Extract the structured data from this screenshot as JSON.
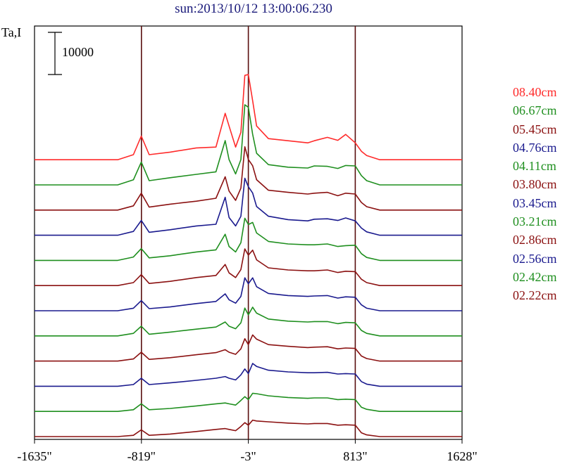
{
  "header": {
    "title": "sun:2013/10/12 13:00:06.230",
    "ylabel": "Ta,I"
  },
  "colors": {
    "red": "#ff2a2a",
    "green": "#1f8f1f",
    "maroon": "#8b1111",
    "navy": "#1a1a8e",
    "axis": "#000000",
    "marker": "#5a0f0f"
  },
  "chart_data": {
    "type": "line",
    "title": "sun:2013/10/12 13:00:06.230",
    "ylabel": "Ta,I",
    "xlabel": "",
    "x_ticks": [
      -1635,
      -819,
      -3,
      813,
      1628
    ],
    "x_tick_labels": [
      "-1635\"",
      "-819\"",
      "-3\"",
      "813\"",
      "1628\""
    ],
    "xlim": [
      -1635,
      1628
    ],
    "vertical_markers": [
      -819,
      -3,
      813
    ],
    "scale_bar": {
      "value": 10000,
      "label": "10000"
    },
    "series": [
      {
        "name": "08.40cm",
        "color": "#ff2a2a",
        "x": [
          -1635,
          -1300,
          -1000,
          -880,
          -820,
          -760,
          -600,
          -400,
          -250,
          -180,
          -150,
          -100,
          -60,
          -30,
          -3,
          30,
          60,
          150,
          300,
          450,
          500,
          600,
          680,
          740,
          813,
          860,
          900,
          1000,
          1300,
          1628
        ],
        "y": [
          0,
          0,
          0,
          1200,
          5600,
          1200,
          1800,
          2800,
          3000,
          11000,
          8000,
          3000,
          6500,
          20000,
          20200,
          14000,
          8000,
          5000,
          4500,
          4000,
          4500,
          5300,
          4600,
          6000,
          4000,
          2000,
          1000,
          0,
          0,
          0
        ]
      },
      {
        "name": "06.67cm",
        "color": "#1f8f1f",
        "x": [
          -1635,
          -1300,
          -1000,
          -880,
          -820,
          -760,
          -600,
          -400,
          -250,
          -180,
          -150,
          -100,
          -60,
          -30,
          -3,
          30,
          60,
          150,
          300,
          450,
          500,
          600,
          680,
          740,
          813,
          860,
          900,
          1000,
          1300,
          1628
        ],
        "y": [
          0,
          0,
          0,
          1200,
          5400,
          1000,
          1700,
          2500,
          3100,
          10500,
          6000,
          2600,
          6000,
          19000,
          18400,
          12000,
          7500,
          4800,
          4200,
          4000,
          4500,
          4400,
          3900,
          4600,
          4500,
          2200,
          1000,
          0,
          0,
          0
        ]
      },
      {
        "name": "05.45cm",
        "color": "#8b1111",
        "x": [
          -1635,
          -1300,
          -1000,
          -880,
          -820,
          -760,
          -600,
          -400,
          -250,
          -180,
          -150,
          -100,
          -60,
          -30,
          -3,
          30,
          60,
          150,
          300,
          450,
          500,
          600,
          680,
          740,
          813,
          860,
          900,
          1000,
          1300,
          1628
        ],
        "y": [
          0,
          0,
          0,
          1000,
          4000,
          700,
          1400,
          2100,
          2800,
          7900,
          4500,
          2300,
          5200,
          15000,
          12000,
          10500,
          7200,
          4700,
          4200,
          3800,
          4000,
          4200,
          3400,
          4000,
          3800,
          1800,
          800,
          0,
          0,
          0
        ]
      },
      {
        "name": "04.76cm",
        "color": "#1a1a8e",
        "x": [
          -1635,
          -1300,
          -1000,
          -880,
          -820,
          -760,
          -600,
          -400,
          -250,
          -180,
          -150,
          -100,
          -60,
          -30,
          -3,
          30,
          60,
          150,
          300,
          450,
          500,
          600,
          680,
          740,
          813,
          860,
          900,
          1000,
          1300,
          1628
        ],
        "y": [
          0,
          0,
          0,
          900,
          3500,
          700,
          1300,
          2200,
          2600,
          9000,
          4200,
          2200,
          4500,
          13500,
          11500,
          10000,
          6800,
          4500,
          3700,
          3400,
          3800,
          3900,
          3500,
          4100,
          3400,
          1700,
          800,
          0,
          0,
          0
        ]
      },
      {
        "name": "04.11cm",
        "color": "#1f8f1f",
        "x": [
          -1635,
          -1300,
          -1000,
          -880,
          -820,
          -760,
          -600,
          -400,
          -250,
          -180,
          -150,
          -100,
          -60,
          -30,
          -3,
          30,
          60,
          150,
          300,
          450,
          500,
          600,
          680,
          740,
          813,
          860,
          900,
          1000,
          1300,
          1628
        ],
        "y": [
          0,
          0,
          0,
          800,
          2800,
          600,
          1100,
          2000,
          2500,
          6200,
          3300,
          2000,
          4200,
          10000,
          8500,
          9000,
          6500,
          4500,
          3900,
          3700,
          3700,
          3900,
          3300,
          3500,
          3600,
          1600,
          700,
          0,
          0,
          0
        ]
      },
      {
        "name": "03.80cm",
        "color": "#8b1111",
        "x": [
          -1635,
          -1300,
          -1000,
          -880,
          -820,
          -760,
          -600,
          -400,
          -250,
          -180,
          -150,
          -100,
          -60,
          -30,
          -3,
          30,
          60,
          150,
          300,
          450,
          500,
          600,
          680,
          740,
          813,
          860,
          900,
          1000,
          1300,
          1628
        ],
        "y": [
          0,
          0,
          0,
          700,
          2600,
          500,
          1000,
          1900,
          2400,
          5000,
          3000,
          1900,
          3800,
          8700,
          7200,
          8400,
          6100,
          4200,
          3700,
          3500,
          3500,
          3700,
          3100,
          3400,
          3300,
          1500,
          700,
          0,
          0,
          0
        ]
      },
      {
        "name": "03.45cm",
        "color": "#1a1a8e",
        "x": [
          -1635,
          -1300,
          -1000,
          -880,
          -820,
          -760,
          -600,
          -400,
          -250,
          -180,
          -150,
          -100,
          -60,
          -30,
          -3,
          30,
          60,
          150,
          300,
          450,
          500,
          600,
          680,
          740,
          813,
          860,
          900,
          1000,
          1300,
          1628
        ],
        "y": [
          0,
          0,
          0,
          600,
          2400,
          500,
          900,
          1700,
          2200,
          4000,
          2600,
          1800,
          3400,
          7800,
          6400,
          7800,
          5700,
          4100,
          3600,
          3400,
          3500,
          3600,
          3000,
          3300,
          3200,
          1400,
          600,
          0,
          0,
          0
        ]
      },
      {
        "name": "03.21cm",
        "color": "#1f8f1f",
        "x": [
          -1635,
          -1300,
          -1000,
          -880,
          -820,
          -760,
          -600,
          -400,
          -250,
          -180,
          -150,
          -100,
          -60,
          -30,
          -3,
          30,
          60,
          150,
          300,
          450,
          500,
          600,
          680,
          740,
          813,
          860,
          900,
          1000,
          1300,
          1628
        ],
        "y": [
          0,
          0,
          0,
          600,
          2300,
          400,
          900,
          1600,
          2100,
          3300,
          2300,
          1700,
          3100,
          6600,
          5000,
          6800,
          5400,
          4000,
          3500,
          3300,
          3400,
          3400,
          2900,
          3200,
          3100,
          1300,
          600,
          0,
          0,
          0
        ]
      },
      {
        "name": "02.86cm",
        "color": "#8b1111",
        "x": [
          -1635,
          -1300,
          -1000,
          -880,
          -820,
          -760,
          -600,
          -400,
          -250,
          -180,
          -150,
          -100,
          -60,
          -30,
          -3,
          30,
          60,
          150,
          300,
          450,
          500,
          600,
          680,
          740,
          813,
          860,
          900,
          1000,
          1300,
          1628
        ],
        "y": [
          0,
          0,
          0,
          500,
          2100,
          400,
          800,
          1500,
          2000,
          2700,
          2100,
          1600,
          2900,
          5300,
          3900,
          6200,
          5200,
          3900,
          3500,
          3200,
          3300,
          3400,
          2900,
          3100,
          3000,
          1200,
          600,
          0,
          0,
          0
        ]
      },
      {
        "name": "02.56cm",
        "color": "#1a1a8e",
        "x": [
          -1635,
          -1300,
          -1000,
          -880,
          -820,
          -760,
          -600,
          -400,
          -250,
          -180,
          -150,
          -100,
          -60,
          -30,
          -3,
          30,
          60,
          150,
          300,
          450,
          500,
          600,
          680,
          740,
          813,
          860,
          900,
          1000,
          1300,
          1628
        ],
        "y": [
          0,
          0,
          0,
          400,
          1900,
          400,
          800,
          1400,
          1900,
          2300,
          1900,
          1500,
          2700,
          4100,
          3000,
          5400,
          4700,
          3800,
          3400,
          3200,
          3200,
          3300,
          2900,
          3000,
          2900,
          1100,
          500,
          0,
          0,
          0
        ]
      },
      {
        "name": "02.42cm",
        "color": "#1f8f1f",
        "x": [
          -1635,
          -1300,
          -1000,
          -880,
          -820,
          -760,
          -600,
          -400,
          -250,
          -180,
          -150,
          -100,
          -60,
          -30,
          -3,
          30,
          60,
          150,
          300,
          450,
          500,
          600,
          680,
          740,
          813,
          860,
          900,
          1000,
          1300,
          1628
        ],
        "y": [
          0,
          0,
          0,
          400,
          1800,
          400,
          700,
          1300,
          1800,
          2000,
          1800,
          1500,
          2600,
          3500,
          2800,
          4300,
          4200,
          3700,
          3300,
          3100,
          3200,
          3200,
          2800,
          2900,
          2800,
          1000,
          500,
          0,
          0,
          0
        ]
      },
      {
        "name": "02.22cm",
        "color": "#8b1111",
        "x": [
          -1635,
          -1300,
          -1000,
          -880,
          -820,
          -760,
          -600,
          -400,
          -250,
          -180,
          -150,
          -100,
          -60,
          -30,
          -3,
          30,
          60,
          150,
          300,
          450,
          500,
          600,
          680,
          740,
          813,
          860,
          900,
          1000,
          1300,
          1628
        ],
        "y": [
          0,
          0,
          0,
          300,
          1600,
          300,
          600,
          1200,
          1700,
          1900,
          1700,
          1400,
          2400,
          3300,
          2700,
          3900,
          3700,
          3500,
          3200,
          3000,
          3100,
          3100,
          2700,
          2800,
          2700,
          900,
          400,
          0,
          0,
          0
        ]
      }
    ]
  }
}
